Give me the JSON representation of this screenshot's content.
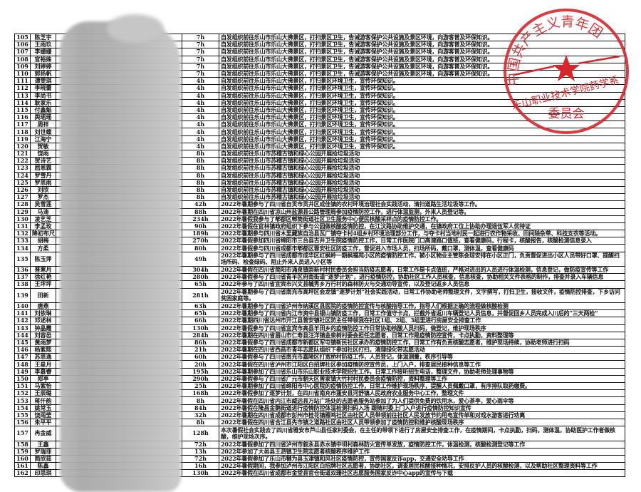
{
  "table": {
    "rows": [
      {
        "no": "105",
        "name": "陈芝宇",
        "hours": "7h",
        "desc": "自发组织前往乐山市乐山大佛景区，打扫景区卫生，告诫游客保护公共设施及景区环境，向游客普及环保知识。"
      },
      {
        "no": "106",
        "name": "王雨玖",
        "hours": "7h",
        "desc": "自发组织前往乐山市乐山大佛景区，打扫景区卫生，告诫游客保护公共设施及景区环境，向游客普及环保知识。"
      },
      {
        "no": "107",
        "name": "李姗姗",
        "hours": "7h",
        "desc": "自发组织前往乐山市乐山大佛景区，打扫景区卫生，告诫游客保护公共设施及景区环境，向游客普及环保知识。"
      },
      {
        "no": "108",
        "name": "官裕姝",
        "hours": "7h",
        "desc": "自发组织前往乐山市乐山大佛景区，打扫景区卫生，告诫游客保护公共设施及景区环境，向游客普及环保知识。"
      },
      {
        "no": "109",
        "name": "刘婷婷",
        "hours": "7h",
        "desc": "自发组织前往乐山市乐山大佛景区，打扫景区卫生，告诫游客保护公共设施及景区环境，向游客普及环保知识。"
      },
      {
        "no": "110",
        "name": "郭扬帆",
        "hours": "7h",
        "desc": "自发组织前往乐山市乐山大佛景区，打扫景区卫生，告诫游客保护公共设施及景区环境，向游客普及环保知识。"
      },
      {
        "no": "111",
        "name": "谭雯琪",
        "hours": "4h",
        "desc": "自发组织前往乐山市乐山大佛景区，打扫景区环境卫生，宣传环保知识。"
      },
      {
        "no": "112",
        "name": "李晓蕾",
        "hours": "4h",
        "desc": "自发组织前往乐山市乐山大佛景区，打扫景区环境卫生，宣传环保知识。"
      },
      {
        "no": "113",
        "name": "李尚书",
        "hours": "4h",
        "desc": "自发组织前往乐山市乐山大佛景区，打扫景区环境卫生，宣传环保知识。"
      },
      {
        "no": "114",
        "name": "耿家乐",
        "hours": "4h",
        "desc": "自发组织前往乐山市乐山大佛景区，打扫景区环境卫生，宣传环保知识。"
      },
      {
        "no": "115",
        "name": "付鑫魁",
        "hours": "4h",
        "desc": "自发组织前往乐山市乐山大佛景区，打扫景区环境卫生，宣传环保知识。"
      },
      {
        "no": "116",
        "name": "舆瑶瑶",
        "hours": "4h",
        "desc": "自发组织前往乐山市乐山大佛景区，打扫景区环境卫生，宣传环保知识。"
      },
      {
        "no": "117",
        "name": "周祥",
        "hours": "4h",
        "desc": "自发组织前往乐山市乐山大佛景区，打扫景区环境卫生，宣传环保知识。"
      },
      {
        "no": "118",
        "name": "刘世蝶",
        "hours": "4h",
        "desc": "自发组织前往乐山市乐山大佛景区，打扫景区环境卫生，宣传环保知识。"
      },
      {
        "no": "119",
        "name": "江海宁",
        "hours": "4h",
        "desc": "自发组织前往乐山市乐山大佛景区，打扫景区环境卫生，宣传环保知识。"
      },
      {
        "no": "120",
        "name": "贺敏",
        "hours": "4h",
        "desc": "自发组织前往乐山市乐山大佛景区，打扫景区环境卫生，宣传环保知识。"
      },
      {
        "no": "121",
        "name": "饶雨",
        "hours": "8h",
        "desc": "自发组织前往乐山市苏稽古镇和绿心公园开展捡垃圾活动"
      },
      {
        "no": "122",
        "name": "贺诗艺",
        "hours": "8h",
        "desc": "自发组织前往乐山市苏稽古镇和绿心公园开展捡垃圾活动"
      },
      {
        "no": "123",
        "name": "屈恩霖",
        "hours": "8h",
        "desc": "自发组织前往乐山市苏稽古镇和绿心公园开展捡垃圾活动"
      },
      {
        "no": "124",
        "name": "罗雪丹",
        "hours": "8h",
        "desc": "自发组织前往乐山市苏稽古镇和绿心公园开展捡垃圾活动"
      },
      {
        "no": "125",
        "name": "罗思雨",
        "hours": "8h",
        "desc": "自发组织前往乐山市苏稽古镇和绿心公园开展捡垃圾活动"
      },
      {
        "no": "126",
        "name": "刘欣",
        "hours": "8h",
        "desc": "自发组织前往乐山市苏稽古镇和绿心公园开展捡垃圾活动"
      },
      {
        "no": "127",
        "name": "罗杰",
        "hours": "8h",
        "desc": "自发组织前往乐山市苏稽古镇和绿心公园开展捡垃圾活动"
      },
      {
        "no": "128",
        "name": "吴雪莲",
        "hours": "42h",
        "desc": "2022年暑期参与了四川省自贡市贡井区成佳镇的农村环境治理社会实践活动，清扫道路生活垃圾等工作。"
      },
      {
        "no": "129",
        "name": "马涛",
        "hours": "88h",
        "desc": "2022年暑期在四川省凉山州盐源县公路管理局参加疫情防控工作，进行体温监测，外来人员登记等。"
      },
      {
        "no": "130",
        "name": "凌艺芝",
        "hours": "234h",
        "desc": "2022年暑假我参与了郫都区郫筒街道社区卫生服务中心便民核酸采样点的疫情防控工作。"
      },
      {
        "no": "131",
        "name": "李孟玫",
        "hours": "90h",
        "desc": "2022年暑假在官林镇政府组织下参与公园做核酸疫情防控，在江汶路协助维护交通，在镇政府工位上协助办理退伍军人优待证"
      },
      {
        "no": "132",
        "name": "降初布尺",
        "hours": "189h",
        "desc": "2022年暑期参与四川省木里藏族自治县瓦厂镇夺卡村4组乡村环境治理部分工作，与夺卡村当地村民一起进行农作物采收、田间除杂草、科技支农等活动。"
      },
      {
        "no": "133",
        "name": "胡梅",
        "hours": "270h",
        "desc": "2022年暑假参加四川省绵阳市三台县古井卫生院疫情防控工作，日常工作医院门口高速路口值班，查看健康码，行程卡，核酸报告，核酸检测信息录入"
      },
      {
        "no": "134",
        "name": "方柔",
        "hours": "80h",
        "desc": "2022年暑假参与四川省成都市郫都区蓉安社区防疫工作，督促进入市场人员，扫场所码，戴口罩，测体温，查看健康码"
      },
      {
        "no": "135",
        "name": "陈玉萍",
        "hours": "49h",
        "tall": true,
        "desc": "2022年暑期参与了四川省成都市成华区红枫岭一期枫福苑小区的疫情防控工作，被小区物业主管陈会琼安排在小区正门，负责督促进出小区人员带好口罩、提醒扫场所码、检查绿码、阻止外来人员进入小区等"
      },
      {
        "no": "136",
        "name": "晋寒月",
        "hours": "304h",
        "desc": "2022年暑假在四川省简阳市涌泉镇崇新村村民委员会担当防疫志愿者，日常工作是卡点值班，严格对进出的人员进行体温检测，信息登记，做防疫宣传等工作"
      },
      {
        "no": "137",
        "name": "徐红艳",
        "hours": "280h",
        "desc": "2022年暑假参与了四川省青羊区府南街道“逐梦计划”，进行疫情防控，协助社区工作人员核查，信息核查，协助相关文件表格的制作，排查并录入车辆信息"
      },
      {
        "no": "138",
        "name": "王坪坪",
        "hours": "65h",
        "desc": "2022年参与了四川省宜宾市兴文县毓秀乡万行村的森林防火与交通劝导宣传，以及登记返乡人员信息"
      },
      {
        "no": "139",
        "name": "田新",
        "hours": "281h",
        "tall": true,
        "desc": "2022年暑期参与了四川省南充市高坪区会龙镇“逐梦计划”社会实践活动，日常工作协助老师整理文件，文字撰写，打扫卫生，接收文件，疫情防控排查，下乡访问贫困家庭等。"
      },
      {
        "no": "140",
        "name": "唐燕",
        "hours": "63h",
        "desc": "2022年暑期参与了四川省泸州市纳溪区县医院的疫情防控宣传与核酸指导工作，指导人们根据正确的流程做核酸检测"
      },
      {
        "no": "141",
        "name": "刘依琳",
        "hours": "65h",
        "desc": "2022年暑期参与了四川省内江市资中县银山镇防疫工作，日常工作值守卡点，拦截外省返川车辆登记人员信息，并督促回乡人员完成入川后的“三天两检”"
      },
      {
        "no": "142",
        "name": "邓述林",
        "hours": "66h",
        "desc": "2022年暑期四川省达州市开江县普安镇社区防主任带领我在社区1组、2组、3组里进行房屋安全排查工作"
      },
      {
        "no": "143",
        "name": "钟晶霞",
        "hours": "130h",
        "desc": "2022年暑假参与了四川省宜宾市高县羊田乡的疫情防控工作日常协助核酸人员扫码，做登记，维护现场秩序"
      },
      {
        "no": "144",
        "name": "刘容邑",
        "hours": "284h",
        "desc": "2022年暑期在四川省眉山市仁寿县汪洋镇金泉树村委会担任志愿者，日常工作是疫情防控宣传，卡点执勤，资料整理等"
      },
      {
        "no": "145",
        "name": "黄雨梦",
        "hours": "86h",
        "desc": "2022年暑假参与了四川省成都市新都区军屯镇新民社区承办的疫情防控工作，日常工作有负责核酸志愿者，维护现场持续，协助老师进行扫码"
      },
      {
        "no": "146",
        "name": "杨紫熙",
        "hours": "21h",
        "desc": "2022年暑期在四川省西昌市青年志愿队组织下参加社区打扫，清理绿化带志愿活动"
      },
      {
        "no": "147",
        "name": "苏思逸",
        "hours": "60h",
        "desc": "2022年暑假参与了四川省南充市嘉陵区打宽桥村防疫工作，人员登记，体温测量，秩序引导等"
      },
      {
        "no": "148",
        "name": "王星月",
        "hours": "20h",
        "desc": "2022年暑假在四川省泸州市江阳区白招牌社区参加疫情防控宣传员，上门入户，排查居民接种信息等工作"
      },
      {
        "no": "149",
        "name": "李慕睿",
        "hours": "195h",
        "desc": "2022年暑期参加了四川省乐山市乐山职业技术学院招生工作，日常工作接听招生电话，整理文件，协助老师处理事物等"
      },
      {
        "no": "150",
        "name": "郑亭",
        "hours": "290h",
        "desc": "2022年暑假参与了四川省广元市朝天区曾家镇大竹村村民委员会疫情防控，资料整理等工作"
      },
      {
        "no": "151",
        "name": "马紫怡",
        "hours": "25h",
        "desc": "2022年暑期参加了四川省绵阳市中心医院的疫情防控工作，日常工作维护现场秩序，提醒人员佩戴口罩，有序排队取药缴费。"
      },
      {
        "no": "152",
        "name": "王辰璐",
        "hours": "168h",
        "desc": "2022年暑假参加了逐梦计划，在四川省南充市蓬安县河舒镇人民政府农业服务中心工作，整理文件"
      },
      {
        "no": "153",
        "name": "蒋仟韵",
        "hours": "8h",
        "desc": "2022年暑假在四川省内江市威远县万站广场处的志愿者服务站参加了为人们提供免费的饮用水，爱心茶亭，爱心雨伞等"
      },
      {
        "no": "154",
        "name": "姚常玉",
        "hours": "84h",
        "desc": "2022年暑假在隆昌金鹅街道进行疫情防控体温检测扫码入场 跟随村委上门入户进行疫情防控知识宣传"
      },
      {
        "no": "155",
        "name": "饶雨莹",
        "hours": "32h",
        "desc": "2022年暑期在四川省成都市彭州市桂花镇雁鸣社区由社区人员带领前往社区人民发放节约用电宣传单和对戏水游客进行劝离"
      },
      {
        "no": "156",
        "name": "朱平平",
        "hours": "8h",
        "desc": "2022年暑假在四川省合江县先市镇之道路社区由社区人员带领参加了疫情防控和维护核酸现场秩序"
      },
      {
        "no": "157",
        "name": "冉金威",
        "hours": "128h",
        "tall": true,
        "desc": "本次暑假社会实践去了四川省雅安市芦山县任家村委会，在主任的带领下进行了房屋安全排查工作，在疫情期间，卡点执勤，扫码，测体温，协助医护工作者做核酸，维护现场次序。"
      },
      {
        "no": "158",
        "name": "王鑫",
        "hours": "72h",
        "desc": "2022年暑假参加了四川省泸州市叙永县赤水镇中坝村森林防火宣传单发放，疫情防控工作，体温检测，核酸检测登记等工作"
      },
      {
        "no": "159",
        "name": "罗瑞菲",
        "hours": "13h",
        "desc": "2022年参加了大邑县王泗镇卫生院志愿者核酸秩序维护工作"
      },
      {
        "no": "160",
        "name": "简欣茹",
        "hours": "72h",
        "desc": "2022年暑假参加了乐山市犍为县玉津镇和风社区疫情防控，宣传国家反诈app，交通安全劝导工作"
      },
      {
        "no": "161",
        "name": "陈鑫",
        "hours": "16h",
        "desc": "2022年暑假期间，我参加泸州市江阳区白招牌社区志愿者，协助社区，调查居民核酸接种情况，安排反护人员的核酸检测，以及帮助社区整理资料等工作"
      },
      {
        "no": "162",
        "name": "印思琪",
        "hours": "130h",
        "desc": "2022年暑假在四川省成都市金堂县官仓街道双珊社区志愿服务国家反诈中心app的宣传与下载"
      }
    ]
  },
  "stamp": {
    "outer_text": "中国共产主义青年团",
    "inner_text": "乐山职业技术学院药学系",
    "bottom_text": "委员会",
    "color": "#d9262b"
  }
}
